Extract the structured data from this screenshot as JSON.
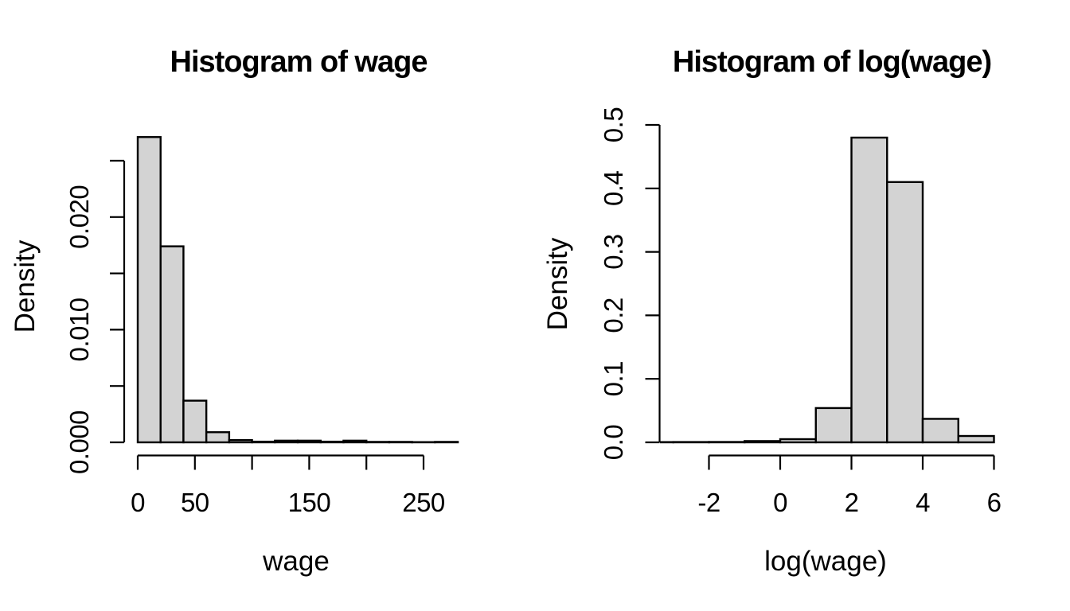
{
  "page": {
    "background": "#ffffff",
    "text_color": "#000000"
  },
  "chart_data": [
    {
      "type": "bar",
      "subtype": "histogram",
      "title": "Histogram of wage",
      "xlabel": "wage",
      "ylabel": "Density",
      "bins": {
        "start": 0,
        "width": 20,
        "densities": [
          0.0271,
          0.0174,
          0.0037,
          0.0009,
          0.0002,
          6e-05,
          0.00015,
          0.00015,
          6e-05,
          0.00015,
          4e-05,
          4e-05,
          2e-05,
          4e-05
        ]
      },
      "x_ticks": [
        {
          "v": 0,
          "label": "0"
        },
        {
          "v": 50,
          "label": "50"
        },
        {
          "v": 100,
          "label": ""
        },
        {
          "v": 150,
          "label": "150"
        },
        {
          "v": 200,
          "label": ""
        },
        {
          "v": 250,
          "label": "250"
        }
      ],
      "y_ticks": [
        {
          "v": 0,
          "label": "0.000"
        },
        {
          "v": 0.005,
          "label": ""
        },
        {
          "v": 0.01,
          "label": "0.010"
        },
        {
          "v": 0.015,
          "label": ""
        },
        {
          "v": 0.02,
          "label": "0.020"
        },
        {
          "v": 0.025,
          "label": ""
        }
      ],
      "xlim": [
        0,
        280
      ],
      "ylim": [
        0,
        0.0272
      ],
      "grid": false,
      "legend": "none",
      "bar_fill": "#d3d3d3",
      "bar_stroke": "#000000"
    },
    {
      "type": "bar",
      "subtype": "histogram",
      "title": "Histogram of log(wage)",
      "xlabel": "log(wage)",
      "ylabel": "Density",
      "bins": {
        "start": -4,
        "width": 1,
        "densities": [
          0.0004,
          0.0005,
          0.0006,
          0.002,
          0.005,
          0.054,
          0.48,
          0.41,
          0.037,
          0.01
        ]
      },
      "x_ticks": [
        {
          "v": -2,
          "label": "-2"
        },
        {
          "v": 0,
          "label": "0"
        },
        {
          "v": 2,
          "label": "2"
        },
        {
          "v": 4,
          "label": "4"
        },
        {
          "v": 6,
          "label": "6"
        }
      ],
      "y_ticks": [
        {
          "v": 0,
          "label": "0.0"
        },
        {
          "v": 0.1,
          "label": "0.1"
        },
        {
          "v": 0.2,
          "label": "0.2"
        },
        {
          "v": 0.3,
          "label": "0.3"
        },
        {
          "v": 0.4,
          "label": "0.4"
        },
        {
          "v": 0.5,
          "label": "0.5"
        }
      ],
      "xlim": [
        -4,
        6
      ],
      "ylim": [
        0,
        0.5
      ],
      "grid": false,
      "legend": "none",
      "bar_fill": "#d3d3d3",
      "bar_stroke": "#000000"
    }
  ]
}
